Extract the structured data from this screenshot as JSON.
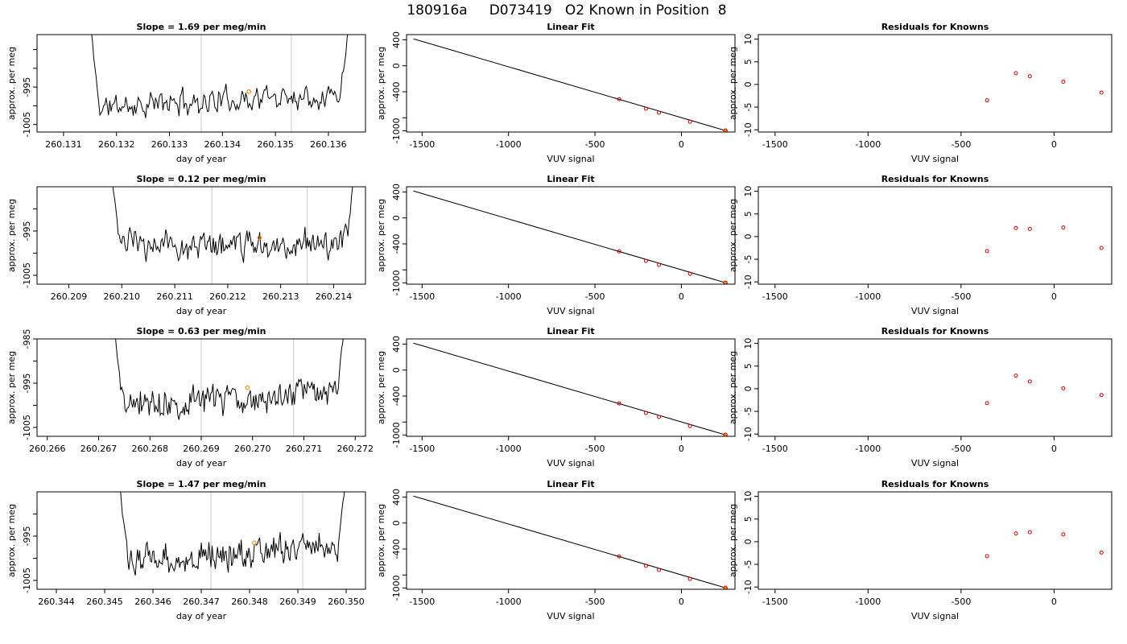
{
  "figure": {
    "title": "180916a     D073419   O2 Known in Position  8"
  },
  "chart_data": [
    {
      "type": "line",
      "row": 0,
      "col": 0,
      "title": "Slope =  1.69  per meg/min",
      "xlabel": "day of year",
      "ylabel": "approx. per meg",
      "xlim": [
        260.1305,
        260.1367
      ],
      "ylim": [
        -1007,
        -981
      ],
      "xticks": [
        260.131,
        260.132,
        260.133,
        260.134,
        260.135,
        260.136
      ],
      "xtick_labels": [
        "260.131",
        "260.132",
        "260.133",
        "260.134",
        "260.135",
        "260.136"
      ],
      "yticks": [
        -1005,
        -1000,
        -995,
        -990,
        -985
      ],
      "ytick_labels": [
        "-1005",
        "",
        "-995",
        "",
        ""
      ],
      "vlines": [
        260.1336,
        260.1353
      ],
      "series_start": 260.1315,
      "series_end": 260.1364,
      "base_level": -998.5,
      "trend": 4.0,
      "seed": 11,
      "marker": {
        "x": 260.1345,
        "y": -996.2
      }
    },
    {
      "type": "line",
      "row": 0,
      "col": 1,
      "title": "Linear Fit",
      "xlabel": "VUV signal",
      "ylabel": "approx. per meg",
      "xlim": [
        -1590,
        310
      ],
      "ylim": [
        -1020,
        480
      ],
      "xticks": [
        -1500,
        -1000,
        -500,
        0
      ],
      "xtick_labels": [
        "-1500",
        "-1000",
        "-500",
        "0"
      ],
      "yticks": [
        -1000,
        -800,
        -400,
        0,
        400
      ],
      "ytick_labels": [
        "-1000",
        "",
        "-400",
        "0",
        "400"
      ],
      "line": {
        "x": [
          -1550,
          255
        ],
        "y": [
          415,
          -998
        ]
      },
      "points": {
        "x": [
          -360,
          -205,
          -130,
          50
        ],
        "y": [
          -515,
          -661,
          -723,
          -861
        ]
      },
      "highlight": {
        "x": [
          255
        ],
        "y": [
          -998
        ]
      }
    },
    {
      "type": "scatter",
      "row": 0,
      "col": 2,
      "title": "Residuals for Knowns",
      "xlabel": "VUV signal",
      "ylabel": "approx. per meg",
      "xlim": [
        -1590,
        310
      ],
      "ylim": [
        -10.5,
        11
      ],
      "xticks": [
        -1500,
        -1000,
        -500,
        0
      ],
      "xtick_labels": [
        "-1500",
        "-1000",
        "-500",
        "0"
      ],
      "yticks": [
        -10,
        -5,
        0,
        5,
        10
      ],
      "ytick_labels": [
        "-10",
        "-5",
        "0",
        "5",
        "10"
      ],
      "points": {
        "x": [
          -360,
          -205,
          -130,
          50,
          255
        ],
        "y": [
          -3.5,
          2.5,
          1.8,
          0.6,
          -1.8
        ]
      }
    },
    {
      "type": "line",
      "row": 1,
      "col": 0,
      "title": "Slope =  0.12  per meg/min",
      "xlabel": "day of year",
      "ylabel": "approx. per meg",
      "xlim": [
        260.2084,
        260.2146
      ],
      "ylim": [
        -1007,
        -985
      ],
      "xticks": [
        260.209,
        260.21,
        260.211,
        260.212,
        260.213,
        260.214
      ],
      "xtick_labels": [
        "260.209",
        "260.210",
        "260.211",
        "260.212",
        "260.213",
        "260.214"
      ],
      "yticks": [
        -1005,
        -1000,
        -995,
        -990
      ],
      "ytick_labels": [
        "-1005",
        "",
        "-995",
        ""
      ],
      "vlines": [
        260.2117,
        260.2135
      ],
      "series_start": 260.2098,
      "series_end": 260.2144,
      "base_level": -998.0,
      "trend": 0.3,
      "seed": 23,
      "marker": {
        "x": 260.2126,
        "y": -996.5
      }
    },
    {
      "type": "line",
      "row": 1,
      "col": 1,
      "title": "Linear Fit",
      "xlabel": "VUV signal",
      "ylabel": "approx. per meg",
      "xlim": [
        -1590,
        310
      ],
      "ylim": [
        -1020,
        480
      ],
      "xticks": [
        -1500,
        -1000,
        -500,
        0
      ],
      "xtick_labels": [
        "-1500",
        "-1000",
        "-500",
        "0"
      ],
      "yticks": [
        -1000,
        -800,
        -400,
        0,
        400
      ],
      "ytick_labels": [
        "-1000",
        "",
        "-400",
        "0",
        "400"
      ],
      "line": {
        "x": [
          -1550,
          255
        ],
        "y": [
          415,
          -998
        ]
      },
      "points": {
        "x": [
          -360,
          -205,
          -130,
          50
        ],
        "y": [
          -515,
          -661,
          -723,
          -861
        ]
      },
      "highlight": {
        "x": [
          255
        ],
        "y": [
          -998
        ]
      }
    },
    {
      "type": "scatter",
      "row": 1,
      "col": 2,
      "title": "Residuals for Knowns",
      "xlabel": "VUV signal",
      "ylabel": "approx. per meg",
      "xlim": [
        -1590,
        310
      ],
      "ylim": [
        -10.5,
        11
      ],
      "xticks": [
        -1500,
        -1000,
        -500,
        0
      ],
      "xtick_labels": [
        "-1500",
        "-1000",
        "-500",
        "0"
      ],
      "yticks": [
        -10,
        -5,
        0,
        5,
        10
      ],
      "ytick_labels": [
        "-10",
        "-5",
        "0",
        "5",
        "10"
      ],
      "points": {
        "x": [
          -360,
          -205,
          -130,
          50,
          255
        ],
        "y": [
          -3.2,
          1.9,
          1.7,
          2.0,
          -2.5
        ]
      }
    },
    {
      "type": "line",
      "row": 2,
      "col": 0,
      "title": "Slope =  0.63  per meg/min",
      "xlabel": "day of year",
      "ylabel": "approx. per meg",
      "xlim": [
        260.2658,
        260.2722
      ],
      "ylim": [
        -1007,
        -985
      ],
      "xticks": [
        260.266,
        260.267,
        260.268,
        260.269,
        260.27,
        260.271,
        260.272
      ],
      "xtick_labels": [
        "260.266",
        "260.267",
        "260.268",
        "260.269",
        "260.270",
        "260.271",
        "260.272"
      ],
      "yticks": [
        -1005,
        -1000,
        -995,
        -990,
        -985
      ],
      "ytick_labels": [
        "-1005",
        "",
        "-995",
        "",
        "-985"
      ],
      "vlines": [
        260.269,
        260.2708
      ],
      "series_start": 260.2673,
      "series_end": 260.2718,
      "base_level": -998.5,
      "trend": 2.5,
      "seed": 37,
      "marker": {
        "x": 260.2699,
        "y": -996.0
      }
    },
    {
      "type": "line",
      "row": 2,
      "col": 1,
      "title": "Linear Fit",
      "xlabel": "VUV signal",
      "ylabel": "approx. per meg",
      "xlim": [
        -1590,
        310
      ],
      "ylim": [
        -1020,
        480
      ],
      "xticks": [
        -1500,
        -1000,
        -500,
        0
      ],
      "xtick_labels": [
        "-1500",
        "-1000",
        "-500",
        "0"
      ],
      "yticks": [
        -1000,
        -800,
        -400,
        0,
        400
      ],
      "ytick_labels": [
        "-1000",
        "",
        "-400",
        "0",
        "400"
      ],
      "line": {
        "x": [
          -1550,
          255
        ],
        "y": [
          415,
          -998
        ]
      },
      "points": {
        "x": [
          -360,
          -205,
          -130,
          50
        ],
        "y": [
          -515,
          -661,
          -723,
          -861
        ]
      },
      "highlight": {
        "x": [
          255
        ],
        "y": [
          -998
        ]
      }
    },
    {
      "type": "scatter",
      "row": 2,
      "col": 2,
      "title": "Residuals for Knowns",
      "xlabel": "VUV signal",
      "ylabel": "approx. per meg",
      "xlim": [
        -1590,
        310
      ],
      "ylim": [
        -10.5,
        11
      ],
      "xticks": [
        -1500,
        -1000,
        -500,
        0
      ],
      "xtick_labels": [
        "-1500",
        "-1000",
        "-500",
        "0"
      ],
      "yticks": [
        -10,
        -5,
        0,
        5,
        10
      ],
      "ytick_labels": [
        "-10",
        "-5",
        "0",
        "5",
        "10"
      ],
      "points": {
        "x": [
          -360,
          -205,
          -130,
          50,
          255
        ],
        "y": [
          -3.2,
          2.9,
          1.6,
          0.1,
          -1.4
        ]
      }
    },
    {
      "type": "line",
      "row": 3,
      "col": 0,
      "title": "Slope =  1.47  per meg/min",
      "xlabel": "day of year",
      "ylabel": "approx. per meg",
      "xlim": [
        260.3436,
        260.3504
      ],
      "ylim": [
        -1007,
        -985
      ],
      "xticks": [
        260.344,
        260.345,
        260.346,
        260.347,
        260.348,
        260.349,
        260.35
      ],
      "xtick_labels": [
        "260.344",
        "260.345",
        "260.346",
        "260.347",
        "260.348",
        "260.349",
        "260.350"
      ],
      "yticks": [
        -1005,
        -1000,
        -995,
        -990
      ],
      "ytick_labels": [
        "-1005",
        "",
        "-995",
        ""
      ],
      "vlines": [
        260.3472,
        260.3491
      ],
      "series_start": 260.3453,
      "series_end": 260.35,
      "base_level": -999.0,
      "trend": 3.5,
      "seed": 53,
      "marker": {
        "x": 260.3481,
        "y": -996.5
      }
    },
    {
      "type": "line",
      "row": 3,
      "col": 1,
      "title": "Linear Fit",
      "xlabel": "VUV signal",
      "ylabel": "approx. per meg",
      "xlim": [
        -1590,
        310
      ],
      "ylim": [
        -1020,
        480
      ],
      "xticks": [
        -1500,
        -1000,
        -500,
        0
      ],
      "xtick_labels": [
        "-1500",
        "-1000",
        "-500",
        "0"
      ],
      "yticks": [
        -1000,
        -800,
        -400,
        0,
        400
      ],
      "ytick_labels": [
        "-1000",
        "",
        "-400",
        "0",
        "400"
      ],
      "line": {
        "x": [
          -1550,
          255
        ],
        "y": [
          415,
          -998
        ]
      },
      "points": {
        "x": [
          -360,
          -205,
          -130,
          50
        ],
        "y": [
          -515,
          -661,
          -723,
          -861
        ]
      },
      "highlight": {
        "x": [
          255
        ],
        "y": [
          -998
        ]
      }
    },
    {
      "type": "scatter",
      "row": 3,
      "col": 2,
      "title": "Residuals for Knowns",
      "xlabel": "VUV signal",
      "ylabel": "approx. per meg",
      "xlim": [
        -1590,
        310
      ],
      "ylim": [
        -10.5,
        11
      ],
      "xticks": [
        -1500,
        -1000,
        -500,
        0
      ],
      "xtick_labels": [
        "-1500",
        "-1000",
        "-500",
        "0"
      ],
      "yticks": [
        -10,
        -5,
        0,
        5,
        10
      ],
      "ytick_labels": [
        "-10",
        "-5",
        "0",
        "5",
        "10"
      ],
      "points": {
        "x": [
          -360,
          -205,
          -130,
          50,
          255
        ],
        "y": [
          -3.2,
          1.8,
          2.1,
          1.6,
          -2.4
        ]
      }
    }
  ],
  "colors": {
    "trace": "#000000",
    "vline": "#c8c8c8",
    "marker": "#ff8c00",
    "points": "#cc0000",
    "axis": "#000000"
  }
}
